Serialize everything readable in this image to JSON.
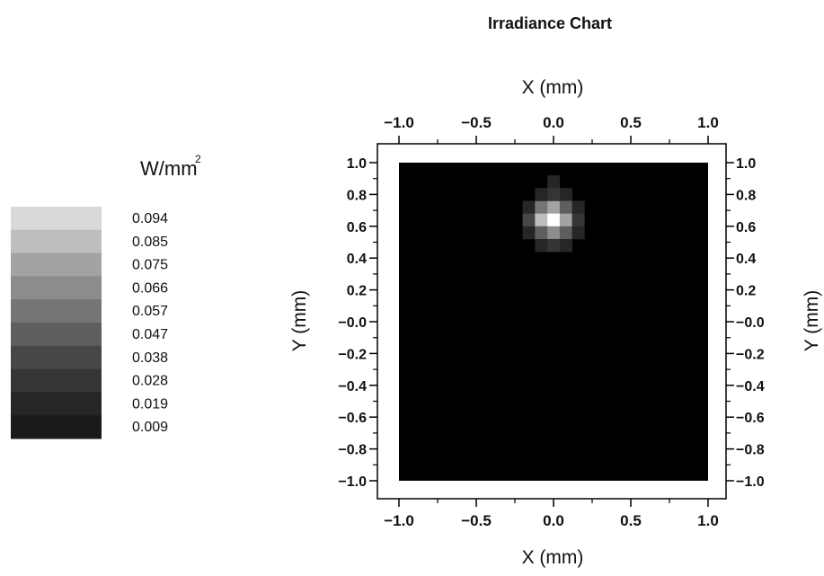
{
  "chart_data": {
    "type": "heatmap",
    "title": "Irradiance Chart",
    "xlabel": "X (mm)",
    "ylabel": "Y (mm)",
    "xlim": [
      -1.0,
      1.0
    ],
    "ylim": [
      -1.0,
      1.0
    ],
    "x_tick_labels": [
      "-1.0",
      "-0.5",
      "0.0",
      "0.5",
      "1.0"
    ],
    "y_tick_labels": [
      "1.0",
      "0.8",
      "0.6",
      "0.4",
      "0.2",
      "-0.0",
      "-0.2",
      "-0.4",
      "-0.6",
      "-0.8",
      "-1.0"
    ],
    "colorbar": {
      "unit": "W/mm",
      "unit_superscript": "2",
      "levels": [
        "0.094",
        "0.085",
        "0.075",
        "0.066",
        "0.057",
        "0.047",
        "0.038",
        "0.028",
        "0.019",
        "0.009"
      ],
      "colors": [
        "#d9d9d9",
        "#bebebe",
        "#a3a3a3",
        "#8c8c8c",
        "#757575",
        "#5e5e5e",
        "#474747",
        "#353535",
        "#262626",
        "#191919"
      ]
    },
    "background_color": "#000000",
    "grid_size": 25,
    "hotspot_cells": [
      {
        "x": 0.0,
        "y": 0.88,
        "value": 0.012
      },
      {
        "x": 0.08,
        "y": 0.8,
        "value": 0.018
      },
      {
        "x": -0.16,
        "y": 0.72,
        "value": 0.014
      },
      {
        "x": -0.08,
        "y": 0.72,
        "value": 0.048
      },
      {
        "x": 0.0,
        "y": 0.72,
        "value": 0.068
      },
      {
        "x": 0.08,
        "y": 0.72,
        "value": 0.042
      },
      {
        "x": 0.16,
        "y": 0.72,
        "value": 0.015
      },
      {
        "x": -0.16,
        "y": 0.64,
        "value": 0.03
      },
      {
        "x": -0.08,
        "y": 0.64,
        "value": 0.078
      },
      {
        "x": 0.0,
        "y": 0.64,
        "value": 0.1
      },
      {
        "x": 0.08,
        "y": 0.64,
        "value": 0.07
      },
      {
        "x": 0.16,
        "y": 0.64,
        "value": 0.027
      },
      {
        "x": -0.16,
        "y": 0.56,
        "value": 0.017
      },
      {
        "x": -0.08,
        "y": 0.56,
        "value": 0.046
      },
      {
        "x": 0.0,
        "y": 0.56,
        "value": 0.063
      },
      {
        "x": 0.08,
        "y": 0.56,
        "value": 0.04
      },
      {
        "x": 0.16,
        "y": 0.56,
        "value": 0.014
      },
      {
        "x": -0.08,
        "y": 0.48,
        "value": 0.014
      },
      {
        "x": 0.0,
        "y": 0.48,
        "value": 0.022
      },
      {
        "x": 0.08,
        "y": 0.48,
        "value": 0.013
      },
      {
        "x": 0.0,
        "y": 0.8,
        "value": 0.024
      },
      {
        "x": -0.08,
        "y": 0.8,
        "value": 0.016
      }
    ]
  }
}
